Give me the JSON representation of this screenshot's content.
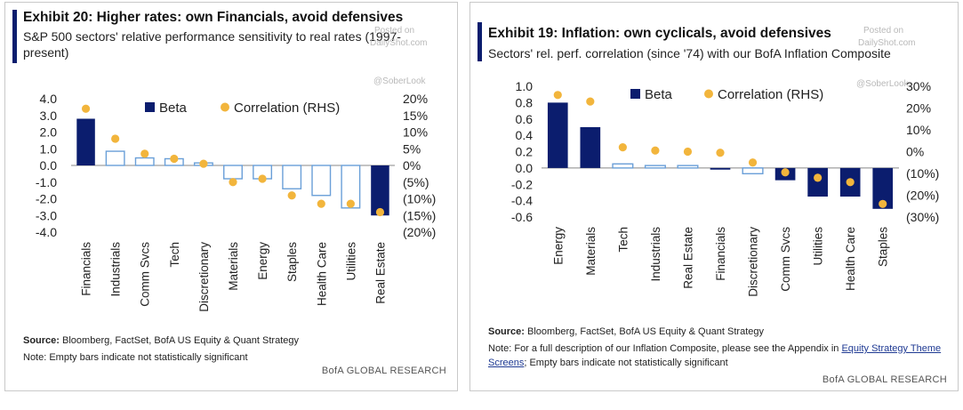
{
  "colors": {
    "navy": "#0b1d6e",
    "hollow_edge": "#6a9fd8",
    "dot": "#f2b53c",
    "accent": "#0b1d6e"
  },
  "left": {
    "title": "Exhibit 20: Higher rates: own Financials, avoid defensives",
    "subtitle": "S&P 500 sectors' relative performance sensitivity to real rates (1997-present)",
    "watermark": {
      "posted": "Posted on",
      "site": "DailyShot.com",
      "handle": "@SoberLook"
    },
    "legend": {
      "beta": "Beta",
      "corr": "Correlation (RHS)"
    },
    "source_label": "Source:",
    "source_text": "Bloomberg, FactSet, BofA US Equity & Quant Strategy",
    "note": "Note: Empty bars indicate not statistically significant",
    "brand": "BofA GLOBAL RESEARCH"
  },
  "right": {
    "title": "Exhibit 19: Inflation: own cyclicals, avoid defensives",
    "subtitle": "Sectors' rel. perf. correlation (since '74) with our BofA Inflation Composite",
    "watermark": {
      "posted": "Posted on",
      "site": "DailyShot.com",
      "handle": "@SoberLook"
    },
    "legend": {
      "beta": "Beta",
      "corr": "Correlation (RHS)"
    },
    "source_label": "Source:",
    "source_text": "Bloomberg, FactSet, BofA US Equity & Quant Strategy",
    "note_pre": "Note: For a full description of our Inflation Composite, please see the Appendix in ",
    "note_link": "Equity Strategy Theme Screens",
    "note_post": "; Empty bars indicate not statistically significant",
    "brand": "BofA GLOBAL RESEARCH"
  },
  "chart_data": [
    {
      "type": "bar",
      "categories": [
        "Financials",
        "Industrials",
        "Comm Svcs",
        "Tech",
        "Discretionary",
        "Materials",
        "Energy",
        "Staples",
        "Health Care",
        "Utilities",
        "Real Estate"
      ],
      "series": [
        {
          "name": "Beta",
          "values": [
            2.8,
            0.85,
            0.45,
            0.4,
            0.15,
            -0.8,
            -0.8,
            -1.4,
            -1.8,
            -2.55,
            -3.0
          ],
          "filled": [
            true,
            false,
            false,
            false,
            false,
            false,
            false,
            false,
            false,
            false,
            true
          ]
        },
        {
          "name": "Correlation (RHS)",
          "values": [
            17,
            8,
            3.5,
            2,
            0.5,
            -5,
            -4,
            -9,
            -11.5,
            -11.5,
            -14
          ]
        }
      ],
      "ylim": [
        -4,
        4
      ],
      "yticks": [
        "4.0",
        "3.0",
        "2.0",
        "1.0",
        "0.0",
        "-1.0",
        "-2.0",
        "-3.0",
        "-4.0"
      ],
      "y2lim": [
        -20,
        20
      ],
      "y2ticks": [
        "20%",
        "15%",
        "10%",
        "5%",
        "0%",
        "(5%)",
        "(10%)",
        "(15%)",
        "(20%)"
      ]
    },
    {
      "type": "bar",
      "categories": [
        "Energy",
        "Materials",
        "Tech",
        "Industrials",
        "Real Estate",
        "Financials",
        "Discretionary",
        "Comm Svcs",
        "Utilities",
        "Health Care",
        "Staples"
      ],
      "series": [
        {
          "name": "Beta",
          "values": [
            0.8,
            0.5,
            0.05,
            0.03,
            0.03,
            -0.02,
            -0.07,
            -0.15,
            -0.35,
            -0.35,
            -0.5
          ],
          "filled": [
            true,
            true,
            false,
            false,
            false,
            true,
            false,
            true,
            true,
            true,
            true
          ]
        },
        {
          "name": "Correlation (RHS)",
          "values": [
            26,
            23,
            2,
            0.5,
            0,
            -0.5,
            -5,
            -9.5,
            -12,
            -14,
            -24
          ]
        }
      ],
      "ylim": [
        -0.6,
        1.0
      ],
      "yticks": [
        "1.0",
        "0.8",
        "0.6",
        "0.4",
        "0.2",
        "0.0",
        "-0.2",
        "-0.4",
        "-0.6"
      ],
      "y2lim": [
        -30,
        30
      ],
      "y2ticks": [
        "30%",
        "20%",
        "10%",
        "0%",
        "(10%)",
        "(20%)",
        "(30%)"
      ]
    }
  ]
}
